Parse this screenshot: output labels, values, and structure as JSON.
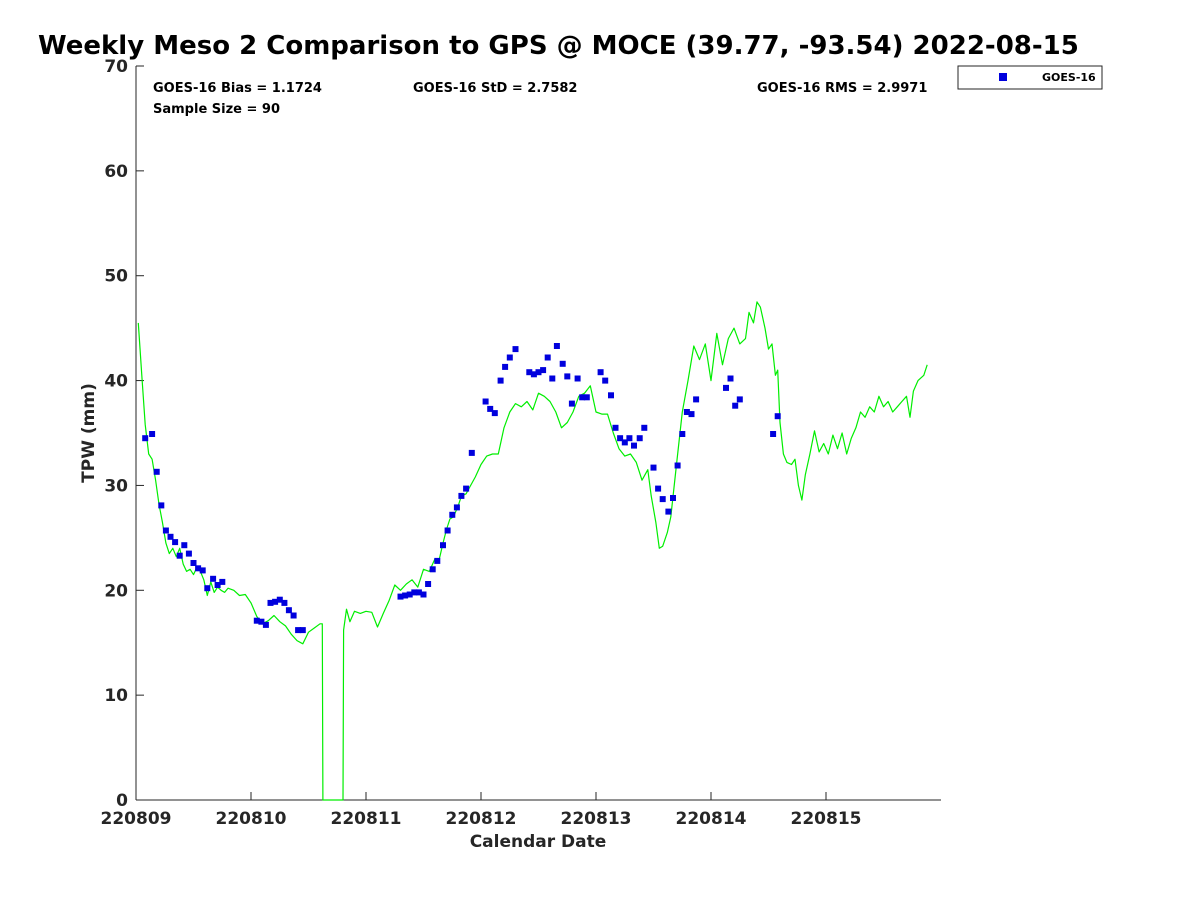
{
  "chart_data": {
    "type": "scatter+line",
    "title": "Weekly Meso 2 Comparison to GPS @ MOCE (39.77, -93.54) 2022-08-15",
    "xlabel": "Calendar Date",
    "ylabel": "TPW (mm)",
    "xlim": [
      0,
      7
    ],
    "ylim": [
      0,
      70
    ],
    "xticks": [
      0,
      1,
      2,
      3,
      4,
      5,
      6
    ],
    "xtick_labels": [
      "220809",
      "220810",
      "220811",
      "220812",
      "220813",
      "220814",
      "220815"
    ],
    "yticks": [
      0,
      10,
      20,
      30,
      40,
      50,
      60,
      70
    ],
    "ytick_labels": [
      "0",
      "10",
      "20",
      "30",
      "40",
      "50",
      "60",
      "70"
    ],
    "stats": {
      "bias": "GOES-16 Bias = 1.1724",
      "std": "GOES-16 StD = 2.7582",
      "rms": "GOES-16 RMS = 2.9971",
      "sample": "Sample Size = 90"
    },
    "legend": {
      "label": "GOES-16",
      "position": "top-right-outside"
    },
    "colors": {
      "goes": "#0000dd",
      "gps": "#00ee00"
    },
    "series": [
      {
        "name": "GOES-16",
        "type": "scatter",
        "points": [
          [
            0.08,
            34.5
          ],
          [
            0.14,
            34.9
          ],
          [
            0.18,
            31.3
          ],
          [
            0.22,
            28.1
          ],
          [
            0.26,
            25.7
          ],
          [
            0.3,
            25.1
          ],
          [
            0.34,
            24.6
          ],
          [
            0.38,
            23.3
          ],
          [
            0.42,
            24.3
          ],
          [
            0.46,
            23.5
          ],
          [
            0.5,
            22.6
          ],
          [
            0.54,
            22.1
          ],
          [
            0.58,
            21.9
          ],
          [
            0.62,
            20.2
          ],
          [
            0.67,
            21.1
          ],
          [
            0.71,
            20.5
          ],
          [
            0.75,
            20.8
          ],
          [
            1.05,
            17.1
          ],
          [
            1.09,
            17.0
          ],
          [
            1.13,
            16.7
          ],
          [
            1.17,
            18.8
          ],
          [
            1.21,
            18.9
          ],
          [
            1.25,
            19.1
          ],
          [
            1.29,
            18.8
          ],
          [
            1.33,
            18.1
          ],
          [
            1.37,
            17.6
          ],
          [
            1.41,
            16.2
          ],
          [
            1.45,
            16.2
          ],
          [
            2.3,
            19.4
          ],
          [
            2.34,
            19.5
          ],
          [
            2.38,
            19.6
          ],
          [
            2.42,
            19.8
          ],
          [
            2.46,
            19.8
          ],
          [
            2.5,
            19.6
          ],
          [
            2.54,
            20.6
          ],
          [
            2.58,
            22.0
          ],
          [
            2.62,
            22.8
          ],
          [
            2.67,
            24.3
          ],
          [
            2.71,
            25.7
          ],
          [
            2.75,
            27.2
          ],
          [
            2.79,
            27.9
          ],
          [
            2.83,
            29.0
          ],
          [
            2.87,
            29.7
          ],
          [
            2.92,
            33.1
          ],
          [
            3.04,
            38.0
          ],
          [
            3.08,
            37.3
          ],
          [
            3.12,
            36.9
          ],
          [
            3.17,
            40.0
          ],
          [
            3.21,
            41.3
          ],
          [
            3.25,
            42.2
          ],
          [
            3.3,
            43.0
          ],
          [
            3.42,
            40.8
          ],
          [
            3.46,
            40.6
          ],
          [
            3.5,
            40.8
          ],
          [
            3.54,
            41.0
          ],
          [
            3.58,
            42.2
          ],
          [
            3.62,
            40.2
          ],
          [
            3.66,
            43.3
          ],
          [
            3.71,
            41.6
          ],
          [
            3.75,
            40.4
          ],
          [
            3.79,
            37.8
          ],
          [
            3.84,
            40.2
          ],
          [
            3.88,
            38.4
          ],
          [
            3.92,
            38.4
          ],
          [
            4.04,
            40.8
          ],
          [
            4.08,
            40.0
          ],
          [
            4.13,
            38.6
          ],
          [
            4.17,
            35.5
          ],
          [
            4.21,
            34.5
          ],
          [
            4.25,
            34.1
          ],
          [
            4.29,
            34.5
          ],
          [
            4.33,
            33.8
          ],
          [
            4.38,
            34.5
          ],
          [
            4.42,
            35.5
          ],
          [
            4.5,
            31.7
          ],
          [
            4.54,
            29.7
          ],
          [
            4.58,
            28.7
          ],
          [
            4.63,
            27.5
          ],
          [
            4.67,
            28.8
          ],
          [
            4.71,
            31.9
          ],
          [
            4.75,
            34.9
          ],
          [
            4.79,
            37.0
          ],
          [
            4.83,
            36.8
          ],
          [
            4.87,
            38.2
          ],
          [
            5.13,
            39.3
          ],
          [
            5.17,
            40.2
          ],
          [
            5.21,
            37.6
          ],
          [
            5.25,
            38.2
          ],
          [
            5.54,
            34.9
          ],
          [
            5.58,
            36.6
          ]
        ]
      },
      {
        "name": "GPS",
        "type": "line",
        "points": [
          [
            0.02,
            45.5
          ],
          [
            0.05,
            40.5
          ],
          [
            0.08,
            35.8
          ],
          [
            0.11,
            33.0
          ],
          [
            0.14,
            32.5
          ],
          [
            0.17,
            30.5
          ],
          [
            0.2,
            28.2
          ],
          [
            0.23,
            26.5
          ],
          [
            0.26,
            24.5
          ],
          [
            0.29,
            23.5
          ],
          [
            0.32,
            24.0
          ],
          [
            0.35,
            23.2
          ],
          [
            0.38,
            24.0
          ],
          [
            0.41,
            22.5
          ],
          [
            0.44,
            21.8
          ],
          [
            0.47,
            22.0
          ],
          [
            0.5,
            21.5
          ],
          [
            0.53,
            22.2
          ],
          [
            0.56,
            21.8
          ],
          [
            0.59,
            21.0
          ],
          [
            0.62,
            19.5
          ],
          [
            0.65,
            20.8
          ],
          [
            0.68,
            19.8
          ],
          [
            0.71,
            20.3
          ],
          [
            0.74,
            20.0
          ],
          [
            0.77,
            19.8
          ],
          [
            0.8,
            20.2
          ],
          [
            0.85,
            20.0
          ],
          [
            0.9,
            19.5
          ],
          [
            0.95,
            19.6
          ],
          [
            1.0,
            18.8
          ],
          [
            1.05,
            17.5
          ],
          [
            1.1,
            16.8
          ],
          [
            1.15,
            17.1
          ],
          [
            1.2,
            17.6
          ],
          [
            1.25,
            17.0
          ],
          [
            1.3,
            16.6
          ],
          [
            1.35,
            15.8
          ],
          [
            1.4,
            15.2
          ],
          [
            1.45,
            14.9
          ],
          [
            1.5,
            16.0
          ],
          [
            1.55,
            16.4
          ],
          [
            1.6,
            16.8
          ],
          [
            1.62,
            16.8
          ],
          [
            1.625,
            0.0
          ],
          [
            1.8,
            0.0
          ],
          [
            1.805,
            16.2
          ],
          [
            1.83,
            18.2
          ],
          [
            1.86,
            17.0
          ],
          [
            1.9,
            18.0
          ],
          [
            1.95,
            17.8
          ],
          [
            2.0,
            18.0
          ],
          [
            2.05,
            17.9
          ],
          [
            2.1,
            16.5
          ],
          [
            2.15,
            17.8
          ],
          [
            2.2,
            19.0
          ],
          [
            2.25,
            20.5
          ],
          [
            2.3,
            20.0
          ],
          [
            2.35,
            20.6
          ],
          [
            2.4,
            21.0
          ],
          [
            2.45,
            20.3
          ],
          [
            2.5,
            22.0
          ],
          [
            2.55,
            21.8
          ],
          [
            2.6,
            23.0
          ],
          [
            2.63,
            22.6
          ],
          [
            2.67,
            24.5
          ],
          [
            2.7,
            25.8
          ],
          [
            2.73,
            26.8
          ],
          [
            2.76,
            27.0
          ],
          [
            2.8,
            28.0
          ],
          [
            2.83,
            29.0
          ],
          [
            2.87,
            29.2
          ],
          [
            2.9,
            29.8
          ],
          [
            2.95,
            30.8
          ],
          [
            3.0,
            32.0
          ],
          [
            3.05,
            32.8
          ],
          [
            3.1,
            33.0
          ],
          [
            3.15,
            33.0
          ],
          [
            3.2,
            35.5
          ],
          [
            3.25,
            37.0
          ],
          [
            3.3,
            37.8
          ],
          [
            3.35,
            37.5
          ],
          [
            3.4,
            38.0
          ],
          [
            3.45,
            37.2
          ],
          [
            3.5,
            38.8
          ],
          [
            3.55,
            38.5
          ],
          [
            3.6,
            38.0
          ],
          [
            3.65,
            37.0
          ],
          [
            3.7,
            35.5
          ],
          [
            3.75,
            36.0
          ],
          [
            3.8,
            37.0
          ],
          [
            3.85,
            38.5
          ],
          [
            3.9,
            38.8
          ],
          [
            3.95,
            39.5
          ],
          [
            4.0,
            37.0
          ],
          [
            4.05,
            36.8
          ],
          [
            4.1,
            36.8
          ],
          [
            4.15,
            35.0
          ],
          [
            4.2,
            33.5
          ],
          [
            4.25,
            32.8
          ],
          [
            4.3,
            33.0
          ],
          [
            4.35,
            32.2
          ],
          [
            4.4,
            30.5
          ],
          [
            4.45,
            31.5
          ],
          [
            4.48,
            29.0
          ],
          [
            4.52,
            26.5
          ],
          [
            4.55,
            24.0
          ],
          [
            4.58,
            24.2
          ],
          [
            4.62,
            25.5
          ],
          [
            4.65,
            27.0
          ],
          [
            4.7,
            32.0
          ],
          [
            4.75,
            37.0
          ],
          [
            4.8,
            40.0
          ],
          [
            4.85,
            43.3
          ],
          [
            4.9,
            42.0
          ],
          [
            4.95,
            43.5
          ],
          [
            5.0,
            40.0
          ],
          [
            5.05,
            44.5
          ],
          [
            5.1,
            41.5
          ],
          [
            5.15,
            44.0
          ],
          [
            5.2,
            45.0
          ],
          [
            5.25,
            43.5
          ],
          [
            5.3,
            44.0
          ],
          [
            5.33,
            46.5
          ],
          [
            5.37,
            45.5
          ],
          [
            5.4,
            47.5
          ],
          [
            5.43,
            47.0
          ],
          [
            5.47,
            45.0
          ],
          [
            5.5,
            43.0
          ],
          [
            5.53,
            43.5
          ],
          [
            5.56,
            40.5
          ],
          [
            5.58,
            41.0
          ],
          [
            5.6,
            36.0
          ],
          [
            5.63,
            33.0
          ],
          [
            5.66,
            32.2
          ],
          [
            5.7,
            32.0
          ],
          [
            5.73,
            32.5
          ],
          [
            5.76,
            30.0
          ],
          [
            5.79,
            28.6
          ],
          [
            5.82,
            31.0
          ],
          [
            5.86,
            33.0
          ],
          [
            5.9,
            35.2
          ],
          [
            5.94,
            33.2
          ],
          [
            5.98,
            34.0
          ],
          [
            6.02,
            33.0
          ],
          [
            6.06,
            34.8
          ],
          [
            6.1,
            33.5
          ],
          [
            6.14,
            35.0
          ],
          [
            6.18,
            33.0
          ],
          [
            6.22,
            34.5
          ],
          [
            6.26,
            35.5
          ],
          [
            6.3,
            37.0
          ],
          [
            6.34,
            36.5
          ],
          [
            6.38,
            37.5
          ],
          [
            6.42,
            37.0
          ],
          [
            6.46,
            38.5
          ],
          [
            6.5,
            37.5
          ],
          [
            6.54,
            38.0
          ],
          [
            6.58,
            37.0
          ],
          [
            6.62,
            37.5
          ],
          [
            6.66,
            38.0
          ],
          [
            6.7,
            38.5
          ],
          [
            6.73,
            36.5
          ],
          [
            6.76,
            39.0
          ],
          [
            6.8,
            40.0
          ],
          [
            6.85,
            40.5
          ],
          [
            6.88,
            41.5
          ]
        ]
      }
    ]
  }
}
